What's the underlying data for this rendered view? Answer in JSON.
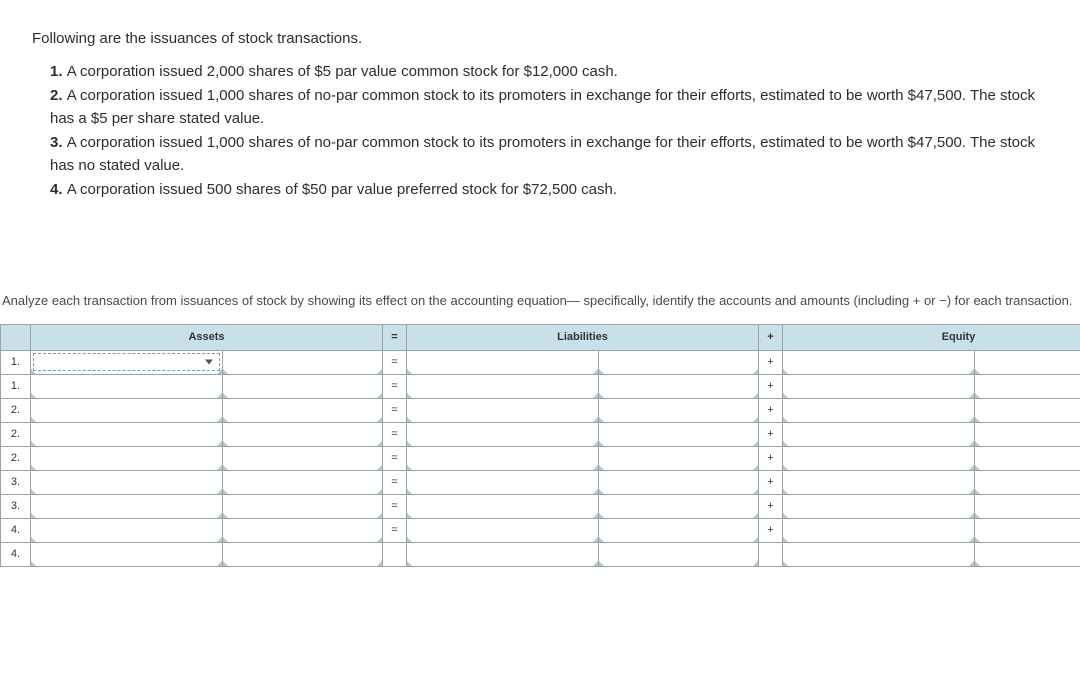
{
  "intro": {
    "title": "Following are the issuances of stock transactions.",
    "items": [
      "A corporation issued 2,000 shares of $5 par value common stock for $12,000 cash.",
      "A corporation issued 1,000 shares of no-par common stock to its promoters in exchange for their efforts, estimated to be worth $47,500. The stock has a $5 per share stated value.",
      "A corporation issued 1,000 shares of no-par common stock to its promoters in exchange for their efforts, estimated to be worth $47,500. The stock has no stated value.",
      "A corporation issued 500 shares of $50 par value preferred stock for $72,500 cash."
    ]
  },
  "instructions": "Analyze each transaction from issuances of stock by showing its effect on the accounting equation— specifically, identify the accounts and amounts (including + or −) for each transaction.",
  "table": {
    "headers": {
      "assets": "Assets",
      "eq": "=",
      "liabilities": "Liabilities",
      "plus": "+",
      "equity": "Equity"
    },
    "row_labels": [
      "1.",
      "1.",
      "2.",
      "2.",
      "2.",
      "3.",
      "3.",
      "4.",
      "4."
    ],
    "eq_sign": "=",
    "plus_sign": "+",
    "colors": {
      "header_bg": "#c7e0ea",
      "border": "#9aa3a8",
      "text": "#333333",
      "dashed_border": "#6aa0c4"
    }
  }
}
